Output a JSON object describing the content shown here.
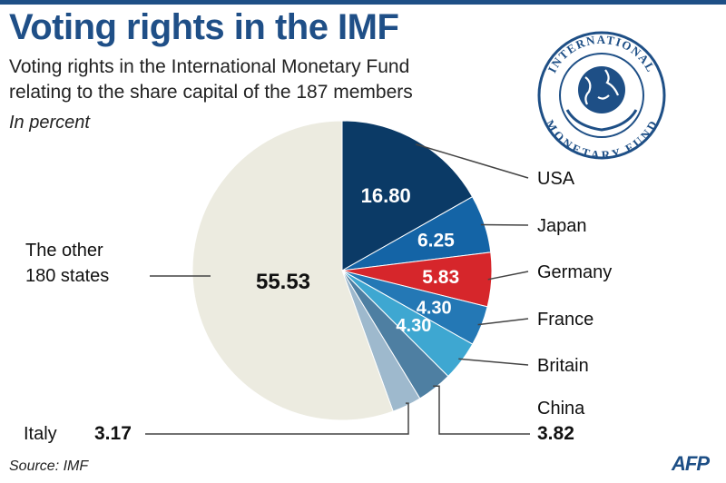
{
  "header": {
    "title": "Voting rights in the IMF",
    "subtitle_line1": "Voting rights in the International Monetary Fund",
    "subtitle_line2": "relating to the share capital of the 187 members",
    "unit": "In percent"
  },
  "logo": {
    "text_top": "INTERNATIONAL",
    "text_bottom": "MONETARY FUND",
    "color": "#1e4f86"
  },
  "footer": {
    "source": "Source: IMF",
    "agency": "AFP"
  },
  "colors": {
    "accent": "#1e4f86",
    "usa": "#0b3a66",
    "japan": "#1464a6",
    "germany": "#d6262b",
    "france": "#2478b5",
    "britain": "#3ea7d1",
    "china": "#4e7fa2",
    "italy": "#9eb9cd",
    "other": "#ecebe0"
  },
  "chart_data": {
    "type": "pie",
    "title": "Voting rights in the IMF",
    "unit": "In percent",
    "slices": [
      {
        "label": "USA",
        "value": 16.8,
        "value_label": "16.80",
        "color": "#0b3a66"
      },
      {
        "label": "Japan",
        "value": 6.25,
        "value_label": "6.25",
        "color": "#1464a6"
      },
      {
        "label": "Germany",
        "value": 5.83,
        "value_label": "5.83",
        "color": "#d6262b"
      },
      {
        "label": "France",
        "value": 4.3,
        "value_label": "4.30",
        "color": "#2478b5"
      },
      {
        "label": "Britain",
        "value": 4.3,
        "value_label": "4.30",
        "color": "#3ea7d1"
      },
      {
        "label": "China",
        "value": 3.82,
        "value_label": "3.82",
        "color": "#4e7fa2"
      },
      {
        "label": "Italy",
        "value": 3.17,
        "value_label": "3.17",
        "color": "#9eb9cd"
      },
      {
        "label": "The other 180 states",
        "value": 55.53,
        "value_label": "55.53",
        "color": "#ecebe0"
      }
    ]
  }
}
